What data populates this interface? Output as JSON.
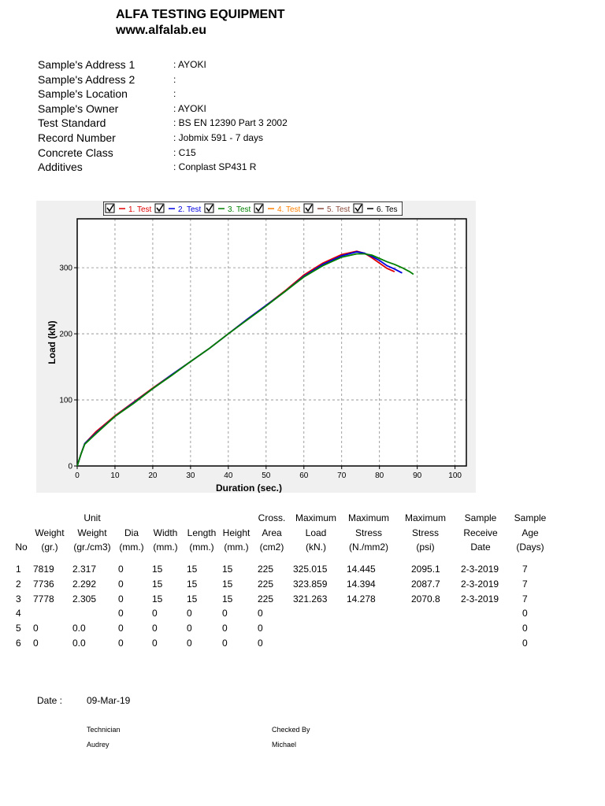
{
  "header": {
    "company": "ALFA TESTING EQUIPMENT",
    "website": "www.alfalab.eu"
  },
  "fields": [
    {
      "label": "Sample's Address 1",
      "value": ": AYOKI"
    },
    {
      "label": "Sample's Address 2",
      "value": ":"
    },
    {
      "label": "Sample's Location",
      "value": ":"
    },
    {
      "label": "Sample's Owner",
      "value": ": AYOKI"
    },
    {
      "label": "Test Standard",
      "value": ": BS EN 12390 Part 3 2002"
    },
    {
      "label": "Record Number",
      "value": ": Jobmix 591 - 7 days"
    },
    {
      "label": "Concrete Class",
      "value": ": C15"
    },
    {
      "label": "Additives",
      "value": ": Conplast SP431 R"
    }
  ],
  "chart_data": {
    "type": "line",
    "x_label": "Duration (sec.)",
    "y_label": "Load (kN)",
    "x": [
      0,
      1,
      2,
      5,
      10,
      15,
      20,
      25,
      30,
      35,
      40,
      45,
      50,
      55,
      60,
      65,
      70,
      74,
      76,
      78,
      80,
      82,
      84,
      86,
      88,
      89
    ],
    "series": [
      {
        "name": "1. Test",
        "color": "#e00000",
        "values": [
          0,
          18,
          34,
          52,
          76,
          97,
          118,
          138,
          158,
          178,
          200,
          222,
          243,
          265,
          289,
          307,
          320,
          325,
          322,
          315,
          307,
          299,
          294,
          null,
          null,
          null
        ]
      },
      {
        "name": "2. Test",
        "color": "#0000e0",
        "values": [
          0,
          18,
          34,
          50,
          75,
          96,
          117,
          138,
          158,
          178,
          200,
          222,
          243,
          264,
          287,
          305,
          318,
          324,
          322,
          317,
          311,
          303,
          298,
          292,
          null,
          null
        ]
      },
      {
        "name": "3. Test",
        "color": "#008000",
        "values": [
          0,
          18,
          33,
          49,
          75,
          95,
          117,
          137,
          158,
          178,
          200,
          221,
          242,
          264,
          286,
          303,
          316,
          321,
          321,
          319,
          314,
          309,
          305,
          300,
          294,
          290
        ]
      },
      {
        "name": "4. Test",
        "color": "#ff8000",
        "values": [
          null,
          null,
          null,
          null,
          null,
          null,
          null,
          null,
          null,
          null,
          null,
          null,
          null,
          null,
          null,
          null,
          null,
          null,
          null,
          null,
          null,
          null,
          null,
          null,
          null,
          null
        ]
      },
      {
        "name": "5. Test",
        "color": "#8b4a3c",
        "values": [
          null,
          null,
          null,
          null,
          null,
          null,
          null,
          null,
          null,
          null,
          null,
          null,
          null,
          null,
          null,
          null,
          null,
          null,
          null,
          null,
          null,
          null,
          null,
          null,
          null,
          null
        ]
      },
      {
        "name": "6. Tes",
        "color": "#000000",
        "values": [
          null,
          null,
          null,
          null,
          null,
          null,
          null,
          null,
          null,
          null,
          null,
          null,
          null,
          null,
          null,
          null,
          null,
          null,
          null,
          null,
          null,
          null,
          null,
          null,
          null,
          null
        ]
      }
    ],
    "xlim": [
      0,
      103
    ],
    "xticks": [
      0,
      10,
      20,
      30,
      40,
      50,
      60,
      70,
      80,
      90,
      100
    ],
    "ylim": [
      0,
      374
    ],
    "yticks": [
      0,
      100,
      200,
      300
    ],
    "grid": true
  },
  "table": {
    "header": [
      [
        "No"
      ],
      [
        "Weight",
        "(gr.)"
      ],
      [
        "Unit",
        "Weight",
        "(gr./cm3)"
      ],
      [
        "Dia",
        "(mm.)"
      ],
      [
        "Width",
        "(mm.)"
      ],
      [
        "Length",
        "(mm.)"
      ],
      [
        "Height",
        "(mm.)"
      ],
      [
        "Cross.",
        "Area",
        "(cm2)"
      ],
      [
        "Maximum",
        "Load",
        "(kN.)"
      ],
      [
        "Maximum",
        "Stress",
        "(N./mm2)"
      ],
      [
        "Maximum",
        "Stress",
        "(psi)"
      ],
      [
        "Sample",
        "Receive",
        "Date"
      ],
      [
        "Sample",
        "Age",
        "(Days)"
      ]
    ],
    "rows": [
      [
        "1",
        "7819",
        "2.317",
        "0",
        "15",
        "15",
        "15",
        "225",
        "325.015",
        "14.445",
        "2095.1",
        "2-3-2019",
        "7"
      ],
      [
        "2",
        "7736",
        "2.292",
        "0",
        "15",
        "15",
        "15",
        "225",
        "323.859",
        "14.394",
        "2087.7",
        "2-3-2019",
        "7"
      ],
      [
        "3",
        "7778",
        "2.305",
        "0",
        "15",
        "15",
        "15",
        "225",
        "321.263",
        "14.278",
        "2070.8",
        "2-3-2019",
        "7"
      ],
      [
        "4",
        null,
        null,
        "0",
        "0",
        "0",
        "0",
        "0",
        null,
        null,
        null,
        null,
        "0"
      ],
      [
        "5",
        "0",
        "0.0",
        "0",
        "0",
        "0",
        "0",
        "0",
        null,
        null,
        null,
        null,
        "0"
      ],
      [
        "6",
        "0",
        "0.0",
        "0",
        "0",
        "0",
        "0",
        "0",
        null,
        null,
        null,
        null,
        "0"
      ]
    ]
  },
  "footer": {
    "date_label": "Date :",
    "date": "09-Mar-19",
    "technician_label": "Technician",
    "technician": "Audrey",
    "checked_label": "Checked By",
    "checked": "Michael"
  }
}
